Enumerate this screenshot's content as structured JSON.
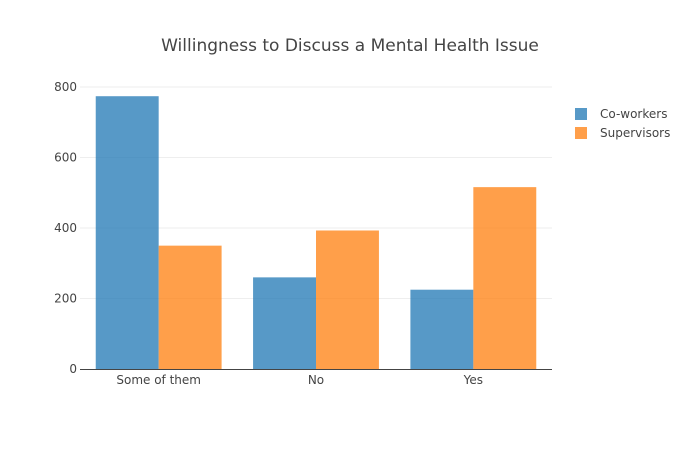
{
  "chart_data": {
    "type": "bar",
    "title": "Willingness to Discuss a Mental Health Issue",
    "xlabel": "",
    "ylabel": "",
    "categories": [
      "Some of them",
      "No",
      "Yes"
    ],
    "series": [
      {
        "name": "Co-workers",
        "values": [
          774,
          260,
          225
        ],
        "color": "#1f77b4"
      },
      {
        "name": "Supervisors",
        "values": [
          350,
          393,
          516
        ],
        "color": "#ff7f0e"
      }
    ],
    "ylim": [
      0,
      820
    ],
    "yticks": [
      0,
      200,
      400,
      600,
      800
    ],
    "grid": true,
    "legend_position": "top-right"
  }
}
